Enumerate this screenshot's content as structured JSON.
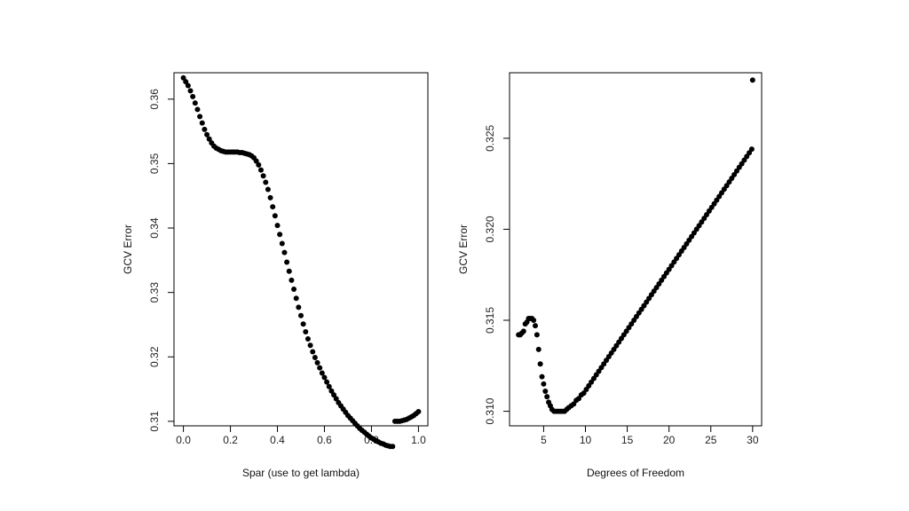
{
  "chart_data": [
    {
      "type": "scatter",
      "xlabel": "Spar (use to get lambda)",
      "ylabel": "GCV Error",
      "xlim": [
        -0.04,
        1.04
      ],
      "ylim": [
        0.3093,
        0.3641
      ],
      "x_ticks": [
        0.0,
        0.2,
        0.4,
        0.6,
        0.8,
        1.0
      ],
      "x_tick_labels": [
        "0.0",
        "0.2",
        "0.4",
        "0.6",
        "0.8",
        "1.0"
      ],
      "y_ticks": [
        0.31,
        0.32,
        0.33,
        0.34,
        0.35,
        0.36
      ],
      "y_tick_labels": [
        "0.31",
        "0.32",
        "0.33",
        "0.34",
        "0.35",
        "0.36"
      ],
      "grid": false,
      "marker": "filled-circle",
      "color": "#000000",
      "x": [
        0.0,
        0.01,
        0.02,
        0.03,
        0.04,
        0.05,
        0.06,
        0.07,
        0.08,
        0.09,
        0.1,
        0.11,
        0.12,
        0.13,
        0.14,
        0.15,
        0.16,
        0.17,
        0.18,
        0.19,
        0.2,
        0.21,
        0.22,
        0.23,
        0.24,
        0.25,
        0.26,
        0.27,
        0.28,
        0.29,
        0.3,
        0.31,
        0.32,
        0.33,
        0.34,
        0.35,
        0.36,
        0.37,
        0.38,
        0.39,
        0.4,
        0.41,
        0.42,
        0.43,
        0.44,
        0.45,
        0.46,
        0.47,
        0.48,
        0.49,
        0.5,
        0.51,
        0.52,
        0.53,
        0.54,
        0.55,
        0.56,
        0.57,
        0.58,
        0.59,
        0.6,
        0.61,
        0.62,
        0.63,
        0.64,
        0.65,
        0.66,
        0.67,
        0.68,
        0.69,
        0.7,
        0.71,
        0.72,
        0.73,
        0.74,
        0.75,
        0.76,
        0.77,
        0.78,
        0.79,
        0.8,
        0.81,
        0.82,
        0.83,
        0.84,
        0.85,
        0.86,
        0.87,
        0.88,
        0.89,
        0.9,
        0.91,
        0.92,
        0.93,
        0.94,
        0.95,
        0.96,
        0.97,
        0.98,
        0.99,
        1.0
      ],
      "y": [
        0.3633,
        0.3627,
        0.3621,
        0.3613,
        0.3604,
        0.3594,
        0.3584,
        0.3573,
        0.3563,
        0.3553,
        0.3545,
        0.3538,
        0.3532,
        0.3527,
        0.3524,
        0.3522,
        0.352,
        0.3519,
        0.3518,
        0.3518,
        0.3518,
        0.3518,
        0.3518,
        0.3518,
        0.3517,
        0.3517,
        0.3516,
        0.3515,
        0.3514,
        0.3512,
        0.3509,
        0.3504,
        0.3498,
        0.349,
        0.3481,
        0.3471,
        0.346,
        0.3447,
        0.3433,
        0.3419,
        0.3404,
        0.339,
        0.3376,
        0.3362,
        0.3347,
        0.3333,
        0.3319,
        0.3305,
        0.3291,
        0.3277,
        0.3264,
        0.3251,
        0.3239,
        0.3228,
        0.3218,
        0.3208,
        0.3199,
        0.3191,
        0.3183,
        0.3175,
        0.3168,
        0.3161,
        0.3154,
        0.3147,
        0.3141,
        0.3135,
        0.3129,
        0.3124,
        0.3119,
        0.3114,
        0.3109,
        0.3105,
        0.3101,
        0.3097,
        0.3093,
        0.3089,
        0.3086,
        0.3083,
        0.308,
        0.3077,
        0.3074,
        0.3072,
        0.307,
        0.3068,
        0.3066,
        0.3065,
        0.3063,
        0.3062,
        0.3061,
        0.3061,
        0.31,
        0.31,
        0.31,
        0.3101,
        0.3102,
        0.3103,
        0.3105,
        0.3107,
        0.3109,
        0.3112,
        0.3115
      ]
    },
    {
      "type": "scatter",
      "xlabel": "Degrees of Freedom",
      "ylabel": "GCV Error",
      "xlim": [
        0.92,
        31.08
      ],
      "ylim": [
        0.3092,
        0.3286
      ],
      "x_ticks": [
        5,
        10,
        15,
        20,
        25,
        30
      ],
      "x_tick_labels": [
        "5",
        "10",
        "15",
        "20",
        "25",
        "30"
      ],
      "y_ticks": [
        0.31,
        0.315,
        0.32,
        0.325
      ],
      "y_tick_labels": [
        "0.310",
        "0.315",
        "0.320",
        "0.325"
      ],
      "grid": false,
      "marker": "filled-circle",
      "color": "#000000",
      "x": [
        2.0,
        2.2,
        2.4,
        2.6,
        2.8,
        3.0,
        3.2,
        3.4,
        3.6,
        3.8,
        4.0,
        4.2,
        4.4,
        4.6,
        4.8,
        5.0,
        5.2,
        5.4,
        5.6,
        5.8,
        6.0,
        6.25,
        6.5,
        6.75,
        7.0,
        7.25,
        7.5,
        7.75,
        8.0,
        8.3,
        8.6,
        8.9,
        9.2,
        9.5,
        9.8,
        10.1,
        10.4,
        10.7,
        11.0,
        11.3,
        11.6,
        11.9,
        12.2,
        12.5,
        12.8,
        13.1,
        13.4,
        13.7,
        14.0,
        14.3,
        14.6,
        14.9,
        15.2,
        15.5,
        15.8,
        16.1,
        16.4,
        16.7,
        17.0,
        17.3,
        17.6,
        17.9,
        18.2,
        18.5,
        18.8,
        19.1,
        19.4,
        19.7,
        20.0,
        20.3,
        20.6,
        20.9,
        21.2,
        21.5,
        21.8,
        22.1,
        22.4,
        22.7,
        23.0,
        23.3,
        23.6,
        23.9,
        24.2,
        24.5,
        24.8,
        25.1,
        25.4,
        25.7,
        26.0,
        26.3,
        26.6,
        26.9,
        27.2,
        27.5,
        27.8,
        28.1,
        28.4,
        28.7,
        29.0,
        29.3,
        29.6,
        29.9,
        30.0
      ],
      "y": [
        0.3142,
        0.3142,
        0.3143,
        0.3144,
        0.3148,
        0.3149,
        0.3151,
        0.3151,
        0.3151,
        0.315,
        0.3147,
        0.3142,
        0.3134,
        0.3126,
        0.3119,
        0.3115,
        0.3111,
        0.3108,
        0.3105,
        0.3103,
        0.3101,
        0.31,
        0.31,
        0.31,
        0.31,
        0.31,
        0.31,
        0.3101,
        0.3102,
        0.3103,
        0.3104,
        0.3106,
        0.3107,
        0.3109,
        0.311,
        0.3112,
        0.3114,
        0.3116,
        0.3118,
        0.312,
        0.3122,
        0.3124,
        0.3126,
        0.3128,
        0.313,
        0.3132,
        0.3134,
        0.3136,
        0.3138,
        0.314,
        0.3142,
        0.3144,
        0.3146,
        0.3148,
        0.315,
        0.3152,
        0.3154,
        0.3156,
        0.3158,
        0.316,
        0.3162,
        0.3164,
        0.3166,
        0.3168,
        0.317,
        0.3172,
        0.3174,
        0.3176,
        0.3178,
        0.318,
        0.3182,
        0.3184,
        0.3186,
        0.3188,
        0.319,
        0.3192,
        0.3194,
        0.3196,
        0.3198,
        0.32,
        0.3202,
        0.3204,
        0.3206,
        0.3208,
        0.321,
        0.3212,
        0.3214,
        0.3216,
        0.3218,
        0.322,
        0.3222,
        0.3224,
        0.3226,
        0.3228,
        0.323,
        0.3232,
        0.3234,
        0.3236,
        0.3238,
        0.324,
        0.3242,
        0.3244,
        0.3282
      ]
    }
  ]
}
